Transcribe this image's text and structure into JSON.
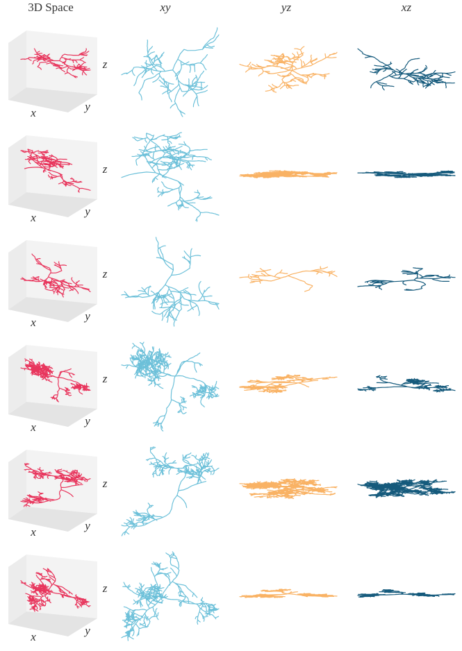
{
  "columns": [
    "3D Space",
    "xy",
    "yz",
    "xz"
  ],
  "rows": [
    {
      "axis_labels": {
        "x": "x",
        "y": "y",
        "z": "z"
      }
    },
    {
      "axis_labels": {
        "x": "x",
        "y": "y",
        "z": "z"
      }
    },
    {
      "axis_labels": {
        "x": "x",
        "y": "y",
        "z": "z"
      }
    },
    {
      "axis_labels": {
        "x": "x",
        "y": "y",
        "z": "z"
      }
    },
    {
      "axis_labels": {
        "x": "x",
        "y": "y",
        "z": "z"
      }
    },
    {
      "axis_labels": {
        "x": "x",
        "y": "y",
        "z": "z"
      }
    }
  ]
}
